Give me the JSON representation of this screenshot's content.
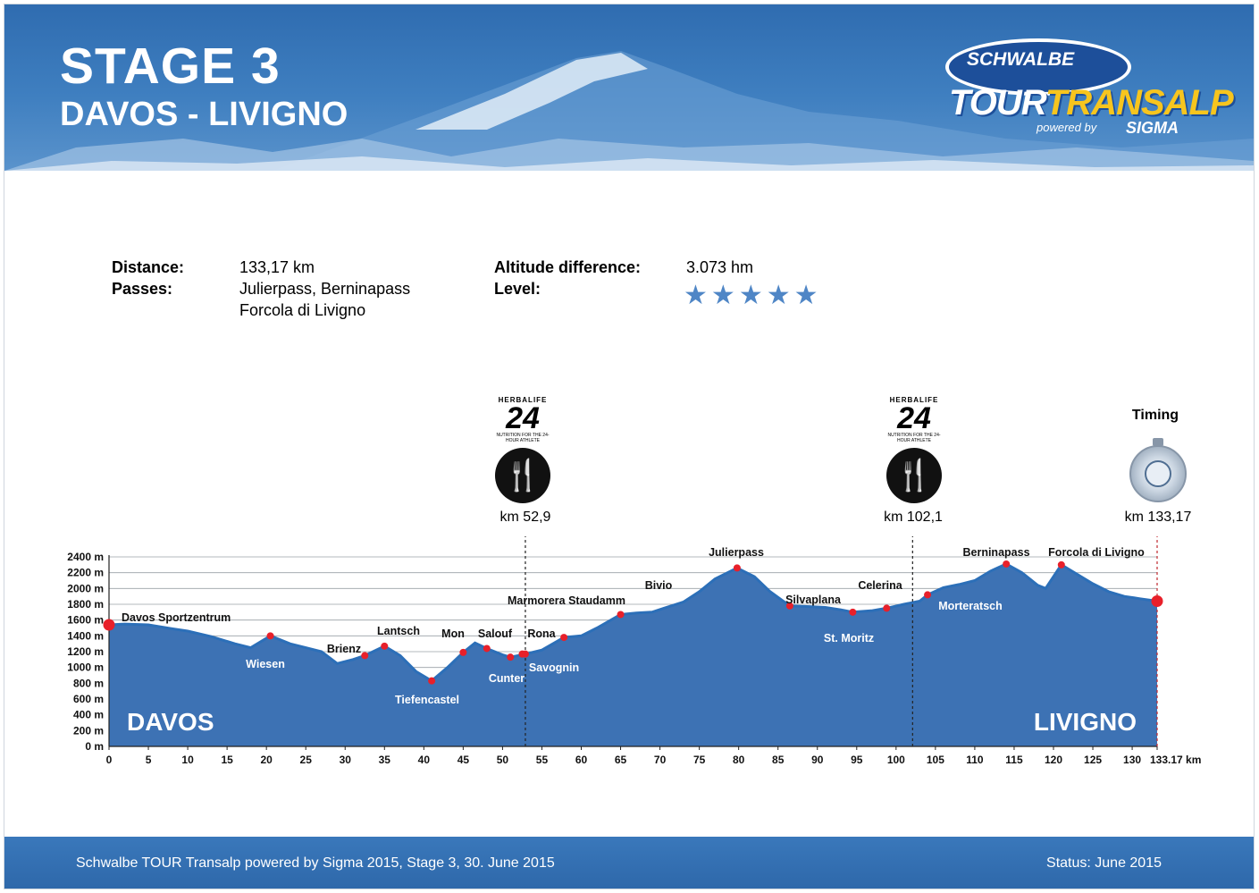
{
  "header": {
    "stage": "STAGE 3",
    "route": "DAVOS - LIVIGNO",
    "logo": {
      "brand": "SCHWALBE",
      "tour": "TOUR",
      "transalp": "TRANSALP",
      "powered_by": "powered by",
      "sponsor": "SIGMA"
    }
  },
  "info": {
    "distance_label": "Distance:",
    "distance_value": "133,17 km",
    "passes_label": "Passes:",
    "passes_line1": "Julierpass, Berninapass",
    "passes_line2": "Forcola di Livigno",
    "altitude_label": "Altitude difference:",
    "altitude_value": "3.073 hm",
    "level_label": "Level:",
    "level_stars": 5,
    "star_color": "#4f86c6"
  },
  "markers": {
    "feed1_brand": "HERBALIFE",
    "feed1_num": "24",
    "feed1_tag": "NUTRITION FOR THE 24-HOUR ATHLETE",
    "feed1_km_label": "km 52,9",
    "feed1_km": 52.9,
    "feed2_brand": "HERBALIFE",
    "feed2_num": "24",
    "feed2_tag": "NUTRITION FOR THE 24-HOUR ATHLETE",
    "feed2_km_label": "km 102,1",
    "feed2_km": 102.1,
    "timing_title": "Timing",
    "timing_km_label": "km 133,17",
    "timing_km": 133.17,
    "feed_icon": "fork-knife-icon",
    "timing_icon": "stopwatch-icon"
  },
  "chart_data": {
    "type": "area",
    "x_unit": "km",
    "y_unit": "m",
    "xlim": [
      0,
      133.17
    ],
    "ylim": [
      0,
      2400
    ],
    "x_ticks": [
      0,
      5,
      10,
      15,
      20,
      25,
      30,
      35,
      40,
      45,
      50,
      55,
      60,
      65,
      70,
      75,
      80,
      85,
      90,
      95,
      100,
      105,
      110,
      115,
      120,
      125,
      130,
      133.17
    ],
    "x_tick_labels": [
      "0",
      "5",
      "10",
      "15",
      "20",
      "25",
      "30",
      "35",
      "40",
      "45",
      "50",
      "55",
      "60",
      "65",
      "70",
      "75",
      "80",
      "85",
      "90",
      "95",
      "100",
      "105",
      "110",
      "115",
      "120",
      "125",
      "130",
      "133.17 km"
    ],
    "y_ticks": [
      0,
      200,
      400,
      600,
      800,
      1000,
      1200,
      1400,
      1600,
      1800,
      2000,
      2200,
      2400
    ],
    "y_tick_labels": [
      "0 m",
      "200 m",
      "400 m",
      "600 m",
      "800 m",
      "1000 m",
      "1200 m",
      "1400 m",
      "1600 m",
      "1800 m",
      "2000 m",
      "2200 m",
      "2400 m"
    ],
    "grid": true,
    "fill_color": "#3d72b4",
    "line_color": "#2c6fb8",
    "point_color": "#e8202a",
    "start_label": "DAVOS",
    "end_label": "LIVIGNO",
    "profile": [
      [
        0,
        1540
      ],
      [
        2,
        1550
      ],
      [
        5,
        1540
      ],
      [
        8,
        1490
      ],
      [
        10,
        1460
      ],
      [
        13,
        1390
      ],
      [
        16,
        1300
      ],
      [
        18,
        1250
      ],
      [
        20.5,
        1400
      ],
      [
        23,
        1300
      ],
      [
        25,
        1250
      ],
      [
        27,
        1200
      ],
      [
        29,
        1050
      ],
      [
        31,
        1100
      ],
      [
        32.5,
        1150
      ],
      [
        35,
        1270
      ],
      [
        37,
        1150
      ],
      [
        39,
        950
      ],
      [
        41,
        830
      ],
      [
        43,
        1000
      ],
      [
        45,
        1190
      ],
      [
        46.5,
        1310
      ],
      [
        48,
        1240
      ],
      [
        50,
        1160
      ],
      [
        51,
        1130
      ],
      [
        52.9,
        1170
      ],
      [
        55,
        1220
      ],
      [
        57.8,
        1380
      ],
      [
        60,
        1400
      ],
      [
        62,
        1500
      ],
      [
        65,
        1670
      ],
      [
        67,
        1690
      ],
      [
        69,
        1700
      ],
      [
        70.5,
        1750
      ],
      [
        73,
        1830
      ],
      [
        75,
        1960
      ],
      [
        77,
        2120
      ],
      [
        79.8,
        2260
      ],
      [
        82,
        2150
      ],
      [
        84,
        1960
      ],
      [
        86.5,
        1780
      ],
      [
        89,
        1770
      ],
      [
        91,
        1760
      ],
      [
        93,
        1730
      ],
      [
        94.5,
        1700
      ],
      [
        97,
        1720
      ],
      [
        98.8,
        1750
      ],
      [
        101,
        1800
      ],
      [
        103,
        1840
      ],
      [
        104,
        1920
      ],
      [
        106,
        2010
      ],
      [
        108,
        2050
      ],
      [
        110,
        2100
      ],
      [
        112,
        2220
      ],
      [
        114,
        2310
      ],
      [
        116,
        2200
      ],
      [
        118,
        2040
      ],
      [
        119,
        2000
      ],
      [
        121,
        2300
      ],
      [
        123,
        2180
      ],
      [
        125,
        2060
      ],
      [
        127,
        1960
      ],
      [
        129,
        1900
      ],
      [
        131,
        1870
      ],
      [
        133.17,
        1840
      ]
    ],
    "waypoints": [
      {
        "name": "Davos Sportzentrum",
        "km": 0,
        "alt": 1540,
        "end": true
      },
      {
        "name": "Wiesen",
        "km": 20.5,
        "alt": 1400
      },
      {
        "name": "Brienz",
        "km": 32.5,
        "alt": 1150
      },
      {
        "name": "Lantsch",
        "km": 35,
        "alt": 1270
      },
      {
        "name": "Tiefencastel",
        "km": 41,
        "alt": 830
      },
      {
        "name": "Mon",
        "km": 45,
        "alt": 1190
      },
      {
        "name": "Salouf",
        "km": 48,
        "alt": 1240
      },
      {
        "name": "Cunter",
        "km": 51,
        "alt": 1130
      },
      {
        "name": "Rona",
        "km": 52.5,
        "alt": 1170
      },
      {
        "name": "Savognin",
        "km": 52.9,
        "alt": 1170
      },
      {
        "name": "Marmorera Staudamm",
        "km": 57.8,
        "alt": 1380
      },
      {
        "name": "Bivio",
        "km": 65,
        "alt": 1670
      },
      {
        "name": "Julierpass",
        "km": 79.8,
        "alt": 2260
      },
      {
        "name": "Silvaplana",
        "km": 86.5,
        "alt": 1780
      },
      {
        "name": "St. Moritz",
        "km": 94.5,
        "alt": 1700
      },
      {
        "name": "Celerina",
        "km": 98.8,
        "alt": 1750
      },
      {
        "name": "Morteratsch",
        "km": 104,
        "alt": 1920
      },
      {
        "name": "Berninapass",
        "km": 114,
        "alt": 2310
      },
      {
        "name": "Forcola di Livigno",
        "km": 121,
        "alt": 2300
      },
      {
        "name": "Livigno",
        "km": 133.17,
        "alt": 1840,
        "end": true
      }
    ],
    "waypoint_labels": [
      {
        "text": "Davos Sportzentrum"
      },
      {
        "text": "Wiesen"
      },
      {
        "text": "Brienz"
      },
      {
        "text": "Lantsch"
      },
      {
        "text": "Tiefencastel"
      },
      {
        "text": "Mon"
      },
      {
        "text": "Salouf"
      },
      {
        "text": "Cunter"
      },
      {
        "text": "Rona"
      },
      {
        "text": "Savognin"
      },
      {
        "text": "Marmorera Staudamm"
      },
      {
        "text": "Bivio"
      },
      {
        "text": "Julierpass"
      },
      {
        "text": "Silvaplana"
      },
      {
        "text": "St. Moritz"
      },
      {
        "text": "Celerina"
      },
      {
        "text": "Morteratsch"
      },
      {
        "text": "Berninapass"
      },
      {
        "text": "Forcola di Livigno"
      }
    ]
  },
  "footer": {
    "left": "Schwalbe TOUR Transalp powered by Sigma 2015, Stage 3, 30. June 2015",
    "right": "Status: June 2015"
  }
}
